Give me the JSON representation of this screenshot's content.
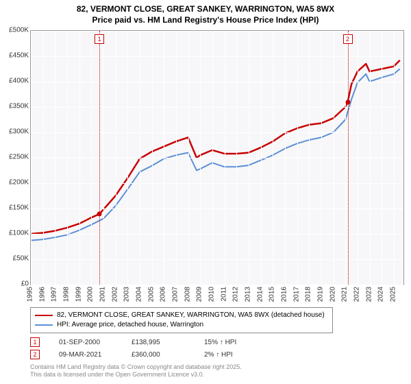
{
  "title_line1": "82, VERMONT CLOSE, GREAT SANKEY, WARRINGTON, WA5 8WX",
  "title_line2": "Price paid vs. HM Land Registry's House Price Index (HPI)",
  "chart": {
    "type": "line",
    "background_color": "#f7f7f9",
    "grid_color": "#ffffff",
    "axis_color": "#999999",
    "label_fontsize": 10,
    "title_fontsize": 12,
    "x_years": [
      1995,
      1996,
      1997,
      1998,
      1999,
      2000,
      2001,
      2002,
      2003,
      2004,
      2005,
      2006,
      2007,
      2008,
      2009,
      2010,
      2011,
      2012,
      2013,
      2014,
      2015,
      2016,
      2017,
      2018,
      2019,
      2020,
      2021,
      2022,
      2023,
      2024,
      2025
    ],
    "xlim": [
      1995,
      2025.8
    ],
    "ylim": [
      0,
      500000
    ],
    "ytick_step": 50000,
    "ytick_labels": [
      "£0",
      "£50K",
      "£100K",
      "£150K",
      "£200K",
      "£250K",
      "£300K",
      "£350K",
      "£400K",
      "£450K",
      "£500K"
    ],
    "series": [
      {
        "name": "82, VERMONT CLOSE, GREAT SANKEY, WARRINGTON, WA5 8WX (detached house)",
        "color": "#c80000",
        "line_width": 2.5,
        "x": [
          1995,
          1996,
          1997,
          1998,
          1999,
          2000,
          2000.67,
          2001,
          2002,
          2003,
          2004,
          2005,
          2006,
          2007,
          2008,
          2008.7,
          2009,
          2010,
          2011,
          2012,
          2013,
          2014,
          2015,
          2016,
          2017,
          2018,
          2019,
          2020,
          2021,
          2021.19,
          2021.5,
          2022,
          2022.7,
          2023,
          2024,
          2025,
          2025.5
        ],
        "y": [
          100000,
          102000,
          106000,
          112000,
          120000,
          132000,
          138995,
          148000,
          175000,
          210000,
          248000,
          262000,
          272000,
          282000,
          290000,
          250000,
          255000,
          265000,
          258000,
          258000,
          260000,
          270000,
          282000,
          298000,
          308000,
          315000,
          318000,
          328000,
          350000,
          360000,
          395000,
          420000,
          435000,
          420000,
          425000,
          430000,
          442000
        ]
      },
      {
        "name": "HPI: Average price, detached house, Warrington",
        "color": "#5b8fd6",
        "line_width": 2,
        "x": [
          1995,
          1996,
          1997,
          1998,
          1999,
          2000,
          2001,
          2002,
          2003,
          2004,
          2005,
          2006,
          2007,
          2008,
          2008.7,
          2009,
          2010,
          2011,
          2012,
          2013,
          2014,
          2015,
          2016,
          2017,
          2018,
          2019,
          2020,
          2021,
          2021.5,
          2022,
          2022.7,
          2023,
          2024,
          2025,
          2025.5
        ],
        "y": [
          87000,
          89000,
          93000,
          98000,
          107000,
          118000,
          130000,
          155000,
          188000,
          222000,
          234000,
          248000,
          255000,
          260000,
          225000,
          228000,
          240000,
          232000,
          232000,
          235000,
          245000,
          255000,
          268000,
          278000,
          285000,
          290000,
          300000,
          325000,
          365000,
          398000,
          415000,
          400000,
          408000,
          415000,
          425000
        ]
      }
    ],
    "vlines": [
      {
        "x": 2000.67,
        "color": "#c80000"
      },
      {
        "x": 2021.19,
        "color": "#c80000"
      }
    ],
    "point_markers": [
      {
        "x": 2000.67,
        "y": 138995,
        "color": "#c80000"
      },
      {
        "x": 2021.19,
        "y": 360000,
        "color": "#c80000"
      }
    ],
    "numbered_markers": [
      {
        "n": "1",
        "x": 2000.67,
        "color": "#c80000"
      },
      {
        "n": "2",
        "x": 2021.19,
        "color": "#c80000"
      }
    ]
  },
  "legend": {
    "s1": "82, VERMONT CLOSE, GREAT SANKEY, WARRINGTON, WA5 8WX (detached house)",
    "s2": "HPI: Average price, detached house, Warrington"
  },
  "marker_rows": [
    {
      "n": "1",
      "date": "01-SEP-2000",
      "price": "£138,995",
      "pct": "15% ↑ HPI",
      "color": "#c80000"
    },
    {
      "n": "2",
      "date": "09-MAR-2021",
      "price": "£360,000",
      "pct": "2% ↑ HPI",
      "color": "#c80000"
    }
  ],
  "attribution_line1": "Contains HM Land Registry data © Crown copyright and database right 2025.",
  "attribution_line2": "This data is licensed under the Open Government Licence v3.0."
}
